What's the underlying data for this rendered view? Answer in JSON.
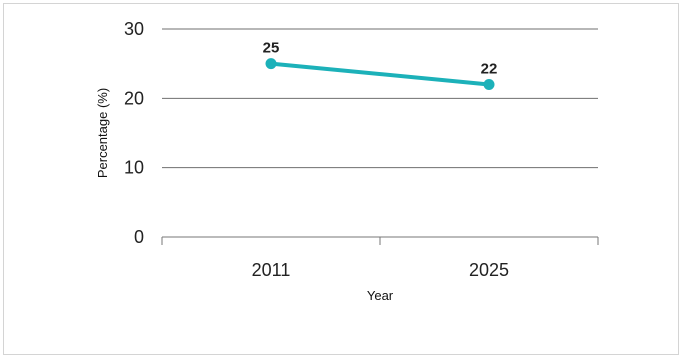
{
  "chart_data": {
    "type": "line",
    "title": "",
    "xlabel": "Year",
    "ylabel": "Percentage (%)",
    "categories": [
      "2011",
      "2025"
    ],
    "series": [
      {
        "values": [
          25,
          22
        ],
        "color": "#1cb1b9",
        "data_labels": [
          "25",
          "22"
        ]
      }
    ],
    "ylim": [
      0,
      30
    ],
    "yticks": [
      0,
      10,
      20,
      30
    ],
    "ytick_labels": [
      "0",
      "10",
      "20",
      "30"
    ],
    "grid": true,
    "legend": "none"
  }
}
